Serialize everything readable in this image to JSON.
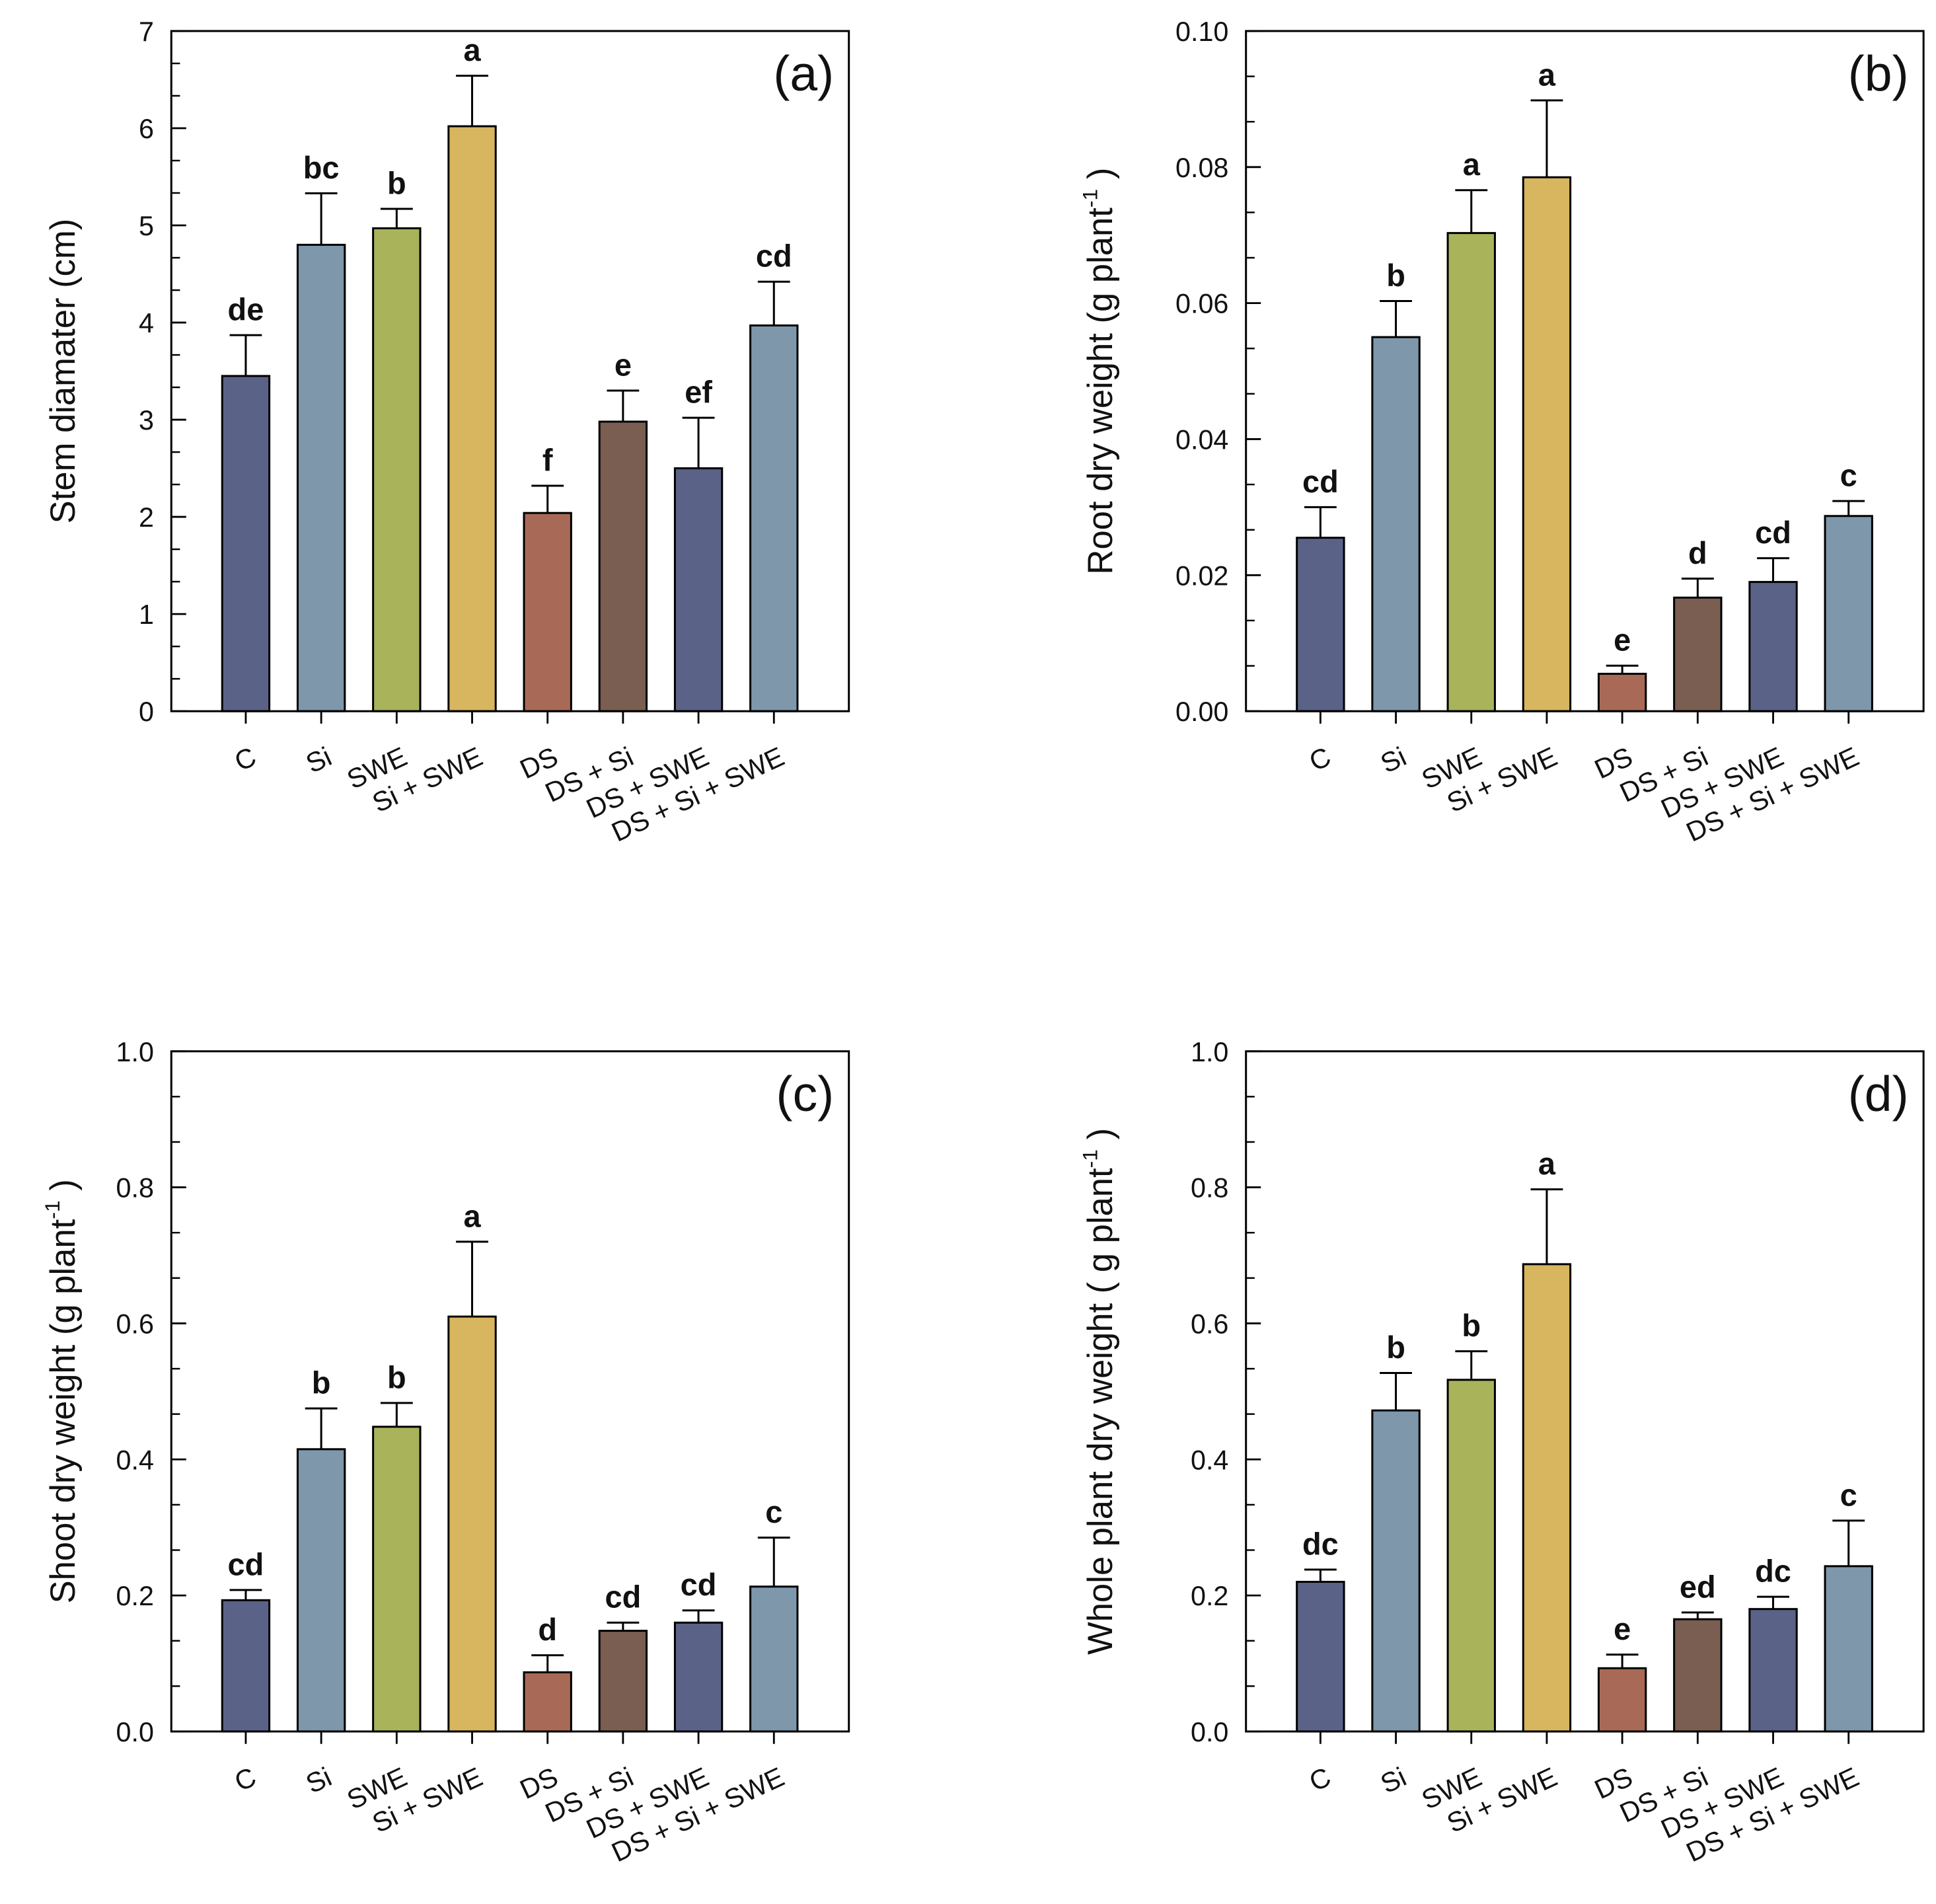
{
  "colors": [
    "#5a6287",
    "#7e97ab",
    "#a9b35a",
    "#d8b65f",
    "#a86a57",
    "#7a5e52",
    "#5a6287",
    "#7e97ab"
  ],
  "chart_data": [
    {
      "type": "bar",
      "panel": "(a)",
      "categories": [
        "C",
        "Si",
        "SWE",
        "Si + SWE",
        "DS",
        "DS + Si",
        "DS + SWE",
        "DS + Si + SWE"
      ],
      "values": [
        3.45,
        4.8,
        4.97,
        6.02,
        2.04,
        2.98,
        2.5,
        3.97
      ],
      "errors": [
        0.42,
        0.53,
        0.2,
        0.52,
        0.28,
        0.32,
        0.52,
        0.45
      ],
      "letters": [
        "de",
        "bc",
        "b",
        "a",
        "f",
        "e",
        "ef",
        "cd"
      ],
      "ylabel": "Stem diamater (cm)",
      "ylabel_sup": "",
      "ylabel_tail": "",
      "ylim": [
        0,
        7
      ],
      "yticks": [
        "0",
        "1",
        "2",
        "3",
        "4",
        "5",
        "6",
        "7"
      ],
      "grid": false
    },
    {
      "type": "bar",
      "panel": "(b)",
      "categories": [
        "C",
        "Si",
        "SWE",
        "Si + SWE",
        "DS",
        "DS + Si",
        "DS + SWE",
        "DS + Si + SWE"
      ],
      "values": [
        0.0255,
        0.055,
        0.0703,
        0.0785,
        0.0055,
        0.0167,
        0.019,
        0.0287
      ],
      "errors": [
        0.0045,
        0.0053,
        0.0063,
        0.0113,
        0.0012,
        0.0028,
        0.0035,
        0.0022
      ],
      "letters": [
        "cd",
        "b",
        "a",
        "a",
        "e",
        "d",
        "cd",
        "c"
      ],
      "ylabel": "Root dry weight (g plant",
      "ylabel_sup": "-1",
      "ylabel_tail": ")",
      "ylim": [
        0,
        0.1
      ],
      "yticks": [
        "0.00",
        "0.02",
        "0.04",
        "0.06",
        "0.08",
        "0.10"
      ],
      "grid": false
    },
    {
      "type": "bar",
      "panel": "(c)",
      "categories": [
        "C",
        "Si",
        "SWE",
        "Si + SWE",
        "DS",
        "DS + Si",
        "DS + SWE",
        "DS + Si + SWE"
      ],
      "values": [
        0.193,
        0.415,
        0.448,
        0.61,
        0.087,
        0.148,
        0.16,
        0.213
      ],
      "errors": [
        0.015,
        0.06,
        0.035,
        0.11,
        0.025,
        0.012,
        0.018,
        0.072
      ],
      "letters": [
        "cd",
        "b",
        "b",
        "a",
        "d",
        "cd",
        "cd",
        "c"
      ],
      "ylabel": "Shoot dry weight (g plant",
      "ylabel_sup": "-1",
      "ylabel_tail": ")",
      "ylim": [
        0,
        1.0
      ],
      "yticks": [
        "0.0",
        "0.2",
        "0.4",
        "0.6",
        "0.8",
        "1.0"
      ],
      "grid": false
    },
    {
      "type": "bar",
      "panel": "(d)",
      "categories": [
        "C",
        "Si",
        "SWE",
        "Si + SWE",
        "DS",
        "DS + Si",
        "DS + SWE",
        "DS + Si + SWE"
      ],
      "values": [
        0.22,
        0.472,
        0.517,
        0.687,
        0.093,
        0.165,
        0.18,
        0.243
      ],
      "errors": [
        0.018,
        0.055,
        0.042,
        0.11,
        0.02,
        0.01,
        0.018,
        0.067
      ],
      "letters": [
        "dc",
        "b",
        "b",
        "a",
        "e",
        "ed",
        "dc",
        "c"
      ],
      "ylabel": "Whole plant dry weight ( g plant",
      "ylabel_sup": "-1",
      "ylabel_tail": ")",
      "ylim": [
        0,
        1.0
      ],
      "yticks": [
        "0.0",
        "0.2",
        "0.4",
        "0.6",
        "0.8",
        "1.0"
      ],
      "grid": false
    }
  ]
}
